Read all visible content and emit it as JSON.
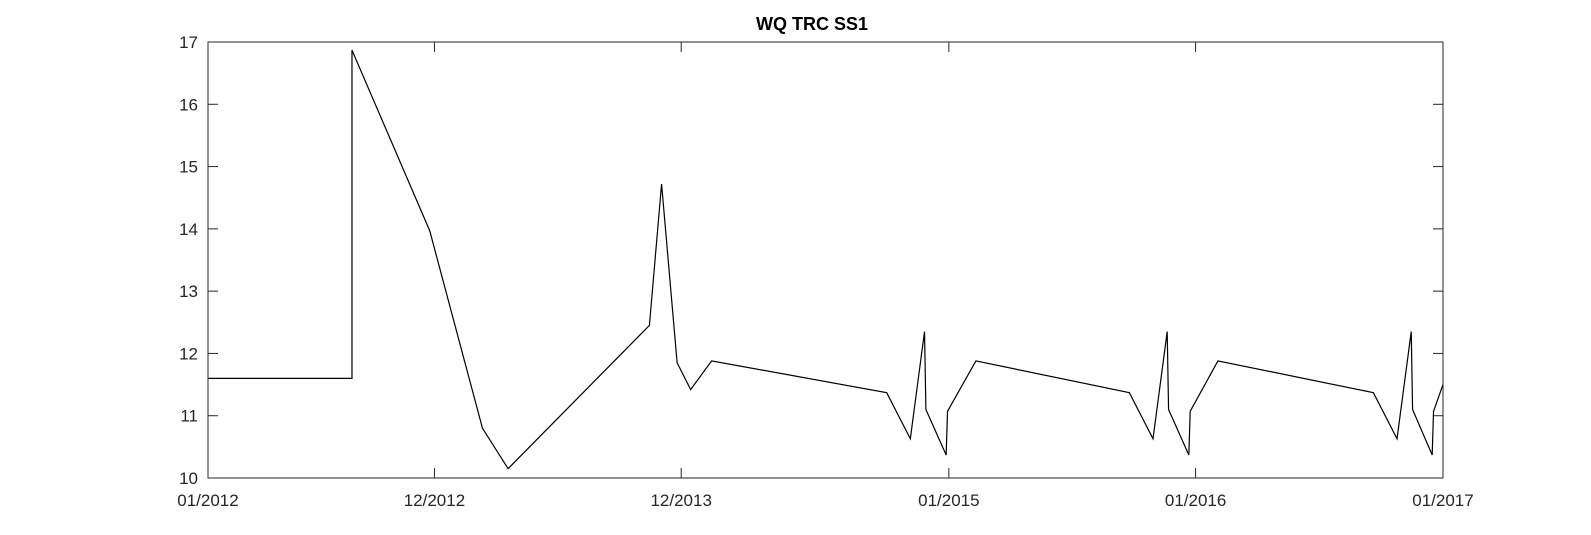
{
  "chart_data": {
    "type": "line",
    "title": "WQ TRC SS1",
    "xlabel": "",
    "ylabel": "",
    "ylim": [
      10,
      17
    ],
    "xlim": [
      "2012-01-01",
      "2017-01-01"
    ],
    "grid": false,
    "x_ticks": [
      "01/2012",
      "12/2012",
      "12/2013",
      "01/2015",
      "01/2016",
      "01/2017"
    ],
    "y_ticks": [
      10,
      11,
      12,
      13,
      14,
      15,
      16,
      17
    ],
    "line_color": "#000000",
    "series": [
      {
        "x": [
          "2012-01-01",
          "2012-08-01",
          "2012-08-01",
          "2012-11-24",
          "2013-02-10",
          "2013-03-20",
          "2013-10-15",
          "2013-11-02",
          "2013-11-25",
          "2013-12-15",
          "2014-01-15",
          "2014-10-01",
          "2014-11-05",
          "2014-11-26",
          "2014-11-28",
          "2014-12-28",
          "2014-12-30",
          "2015-02-10",
          "2015-09-25",
          "2015-10-30",
          "2015-11-20",
          "2015-11-22",
          "2015-12-22",
          "2015-12-24",
          "2016-02-03",
          "2016-09-20",
          "2016-10-25",
          "2016-11-15",
          "2016-11-17",
          "2016-12-16",
          "2016-12-18",
          "2017-01-01"
        ],
        "values": [
          11.6,
          11.6,
          16.87,
          13.97,
          10.8,
          10.15,
          12.45,
          14.72,
          11.85,
          11.42,
          11.88,
          11.37,
          10.63,
          12.35,
          11.1,
          10.37,
          11.07,
          11.88,
          11.37,
          10.63,
          12.35,
          11.1,
          10.37,
          11.07,
          11.88,
          11.37,
          10.63,
          12.35,
          11.1,
          10.37,
          11.07,
          11.5
        ]
      }
    ]
  }
}
